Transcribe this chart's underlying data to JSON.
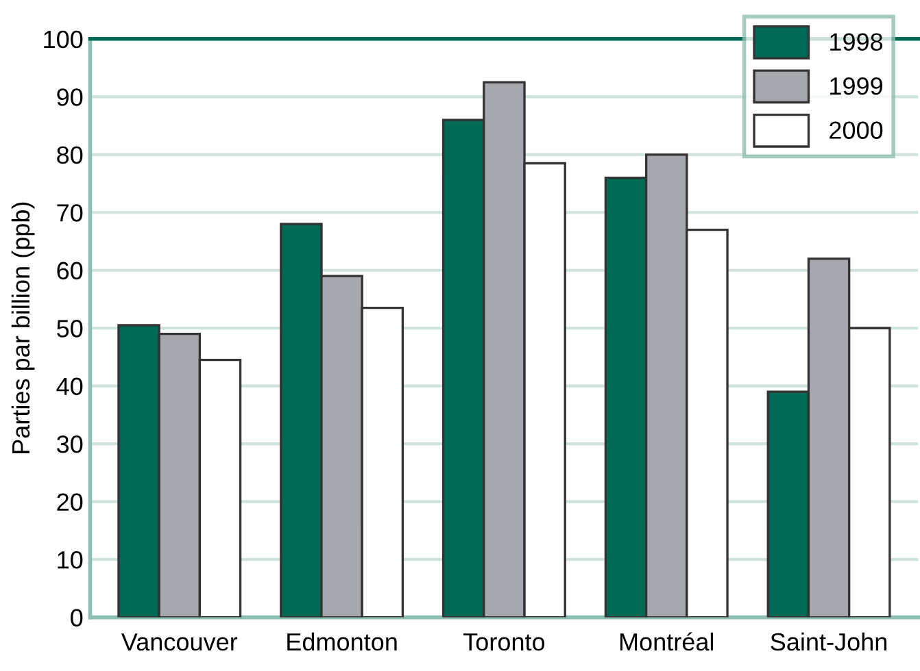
{
  "chart_data": {
    "type": "bar",
    "ylabel": "Parties par billion (ppb)",
    "categories": [
      "Vancouver",
      "Edmonton",
      "Toronto",
      "Montréal",
      "Saint-John"
    ],
    "series": [
      {
        "name": "1998",
        "color": "#006a55",
        "values": [
          50.5,
          68,
          86,
          76,
          39
        ]
      },
      {
        "name": "1999",
        "color": "#a7a8ae",
        "values": [
          49,
          59,
          92.5,
          80,
          62
        ]
      },
      {
        "name": "2000",
        "color": "#ffffff",
        "values": [
          44.5,
          53.5,
          78.5,
          67,
          50
        ]
      }
    ],
    "ylim": [
      0,
      100
    ],
    "yticks": [
      0,
      10,
      20,
      30,
      40,
      50,
      60,
      70,
      80,
      90,
      100
    ],
    "grid": "y",
    "legend": "top right"
  }
}
